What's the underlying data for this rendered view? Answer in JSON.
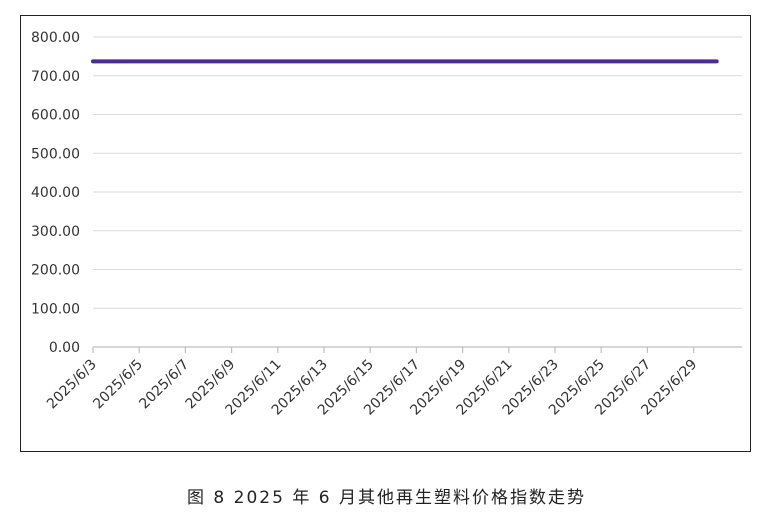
{
  "caption": "图 8  2025 年 6 月其他再生塑料价格指数走势",
  "chart_data": {
    "type": "line",
    "ylim": [
      0,
      800
    ],
    "y_ticks": [
      "0.00",
      "100.00",
      "200.00",
      "300.00",
      "400.00",
      "500.00",
      "600.00",
      "700.00",
      "800.00"
    ],
    "x_tick_labels": [
      "2025/6/3",
      "2025/6/5",
      "2025/6/7",
      "2025/6/9",
      "2025/6/11",
      "2025/6/13",
      "2025/6/15",
      "2025/6/17",
      "2025/6/19",
      "2025/6/21",
      "2025/6/23",
      "2025/6/25",
      "2025/6/27",
      "2025/6/29"
    ],
    "grid": true,
    "legend": "none",
    "colors": {
      "series": "#4b2d8f",
      "grid": "#d9d9d9",
      "axis": "#bfbfbf"
    },
    "series": [
      {
        "x": [
          "2025/6/3",
          "2025/6/5",
          "2025/6/7",
          "2025/6/9",
          "2025/6/11",
          "2025/6/13",
          "2025/6/15",
          "2025/6/17",
          "2025/6/19",
          "2025/6/21",
          "2025/6/23",
          "2025/6/25",
          "2025/6/27",
          "2025/6/29",
          "2025/6/30"
        ],
        "values": [
          737,
          737,
          737,
          737,
          737,
          737,
          737,
          737,
          737,
          737,
          737,
          737,
          737,
          737,
          737
        ]
      }
    ]
  }
}
